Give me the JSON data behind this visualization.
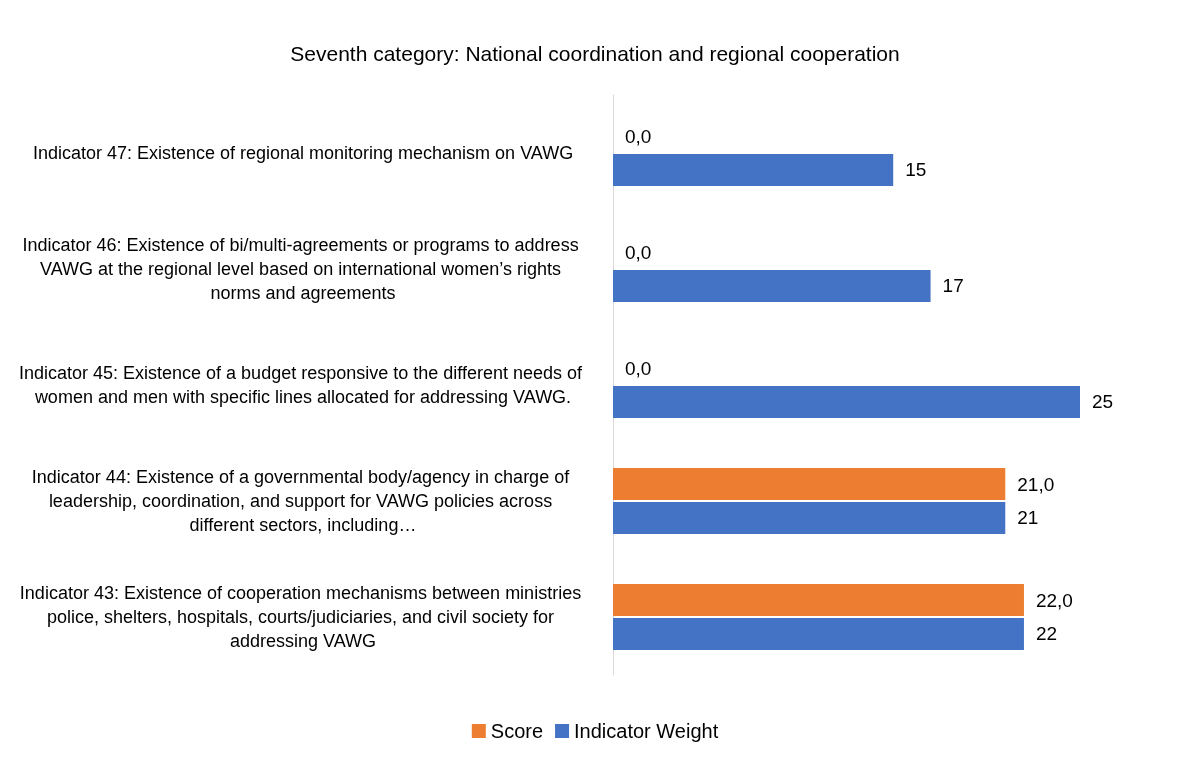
{
  "chart_data": {
    "type": "bar",
    "orientation": "horizontal",
    "title": "Seventh category: National coordination and regional cooperation",
    "categories": [
      "Indicator 47: Existence of regional monitoring mechanism on VAWG",
      "Indicator 46: Existence of bi/multi-agreements or programs to address VAWG at the regional level based on international women’s rights norms and agreements",
      "Indicator 45: Existence of a budget responsive to the different needs of women and men with specific lines allocated for addressing VAWG.",
      "Indicator 44: Existence of a governmental body/agency in charge of leadership, coordination, and support for VAWG policies across different sectors, including…",
      "Indicator 43: Existence of cooperation mechanisms between ministries police, shelters, hospitals, courts/judiciaries, and civil society for addressing VAWG"
    ],
    "series": [
      {
        "name": "Score",
        "color": "#ed7d31",
        "values": [
          0,
          0,
          0,
          21,
          22
        ],
        "value_labels": [
          "0,0",
          "0,0",
          "0,0",
          "21,0",
          "22,0"
        ]
      },
      {
        "name": "Indicator Weight",
        "color": "#4472c4",
        "values": [
          15,
          17,
          25,
          21,
          22
        ],
        "value_labels": [
          "15",
          "17",
          "25",
          "21",
          "22"
        ]
      }
    ],
    "legend": "bottom",
    "tick_labels": "y"
  }
}
